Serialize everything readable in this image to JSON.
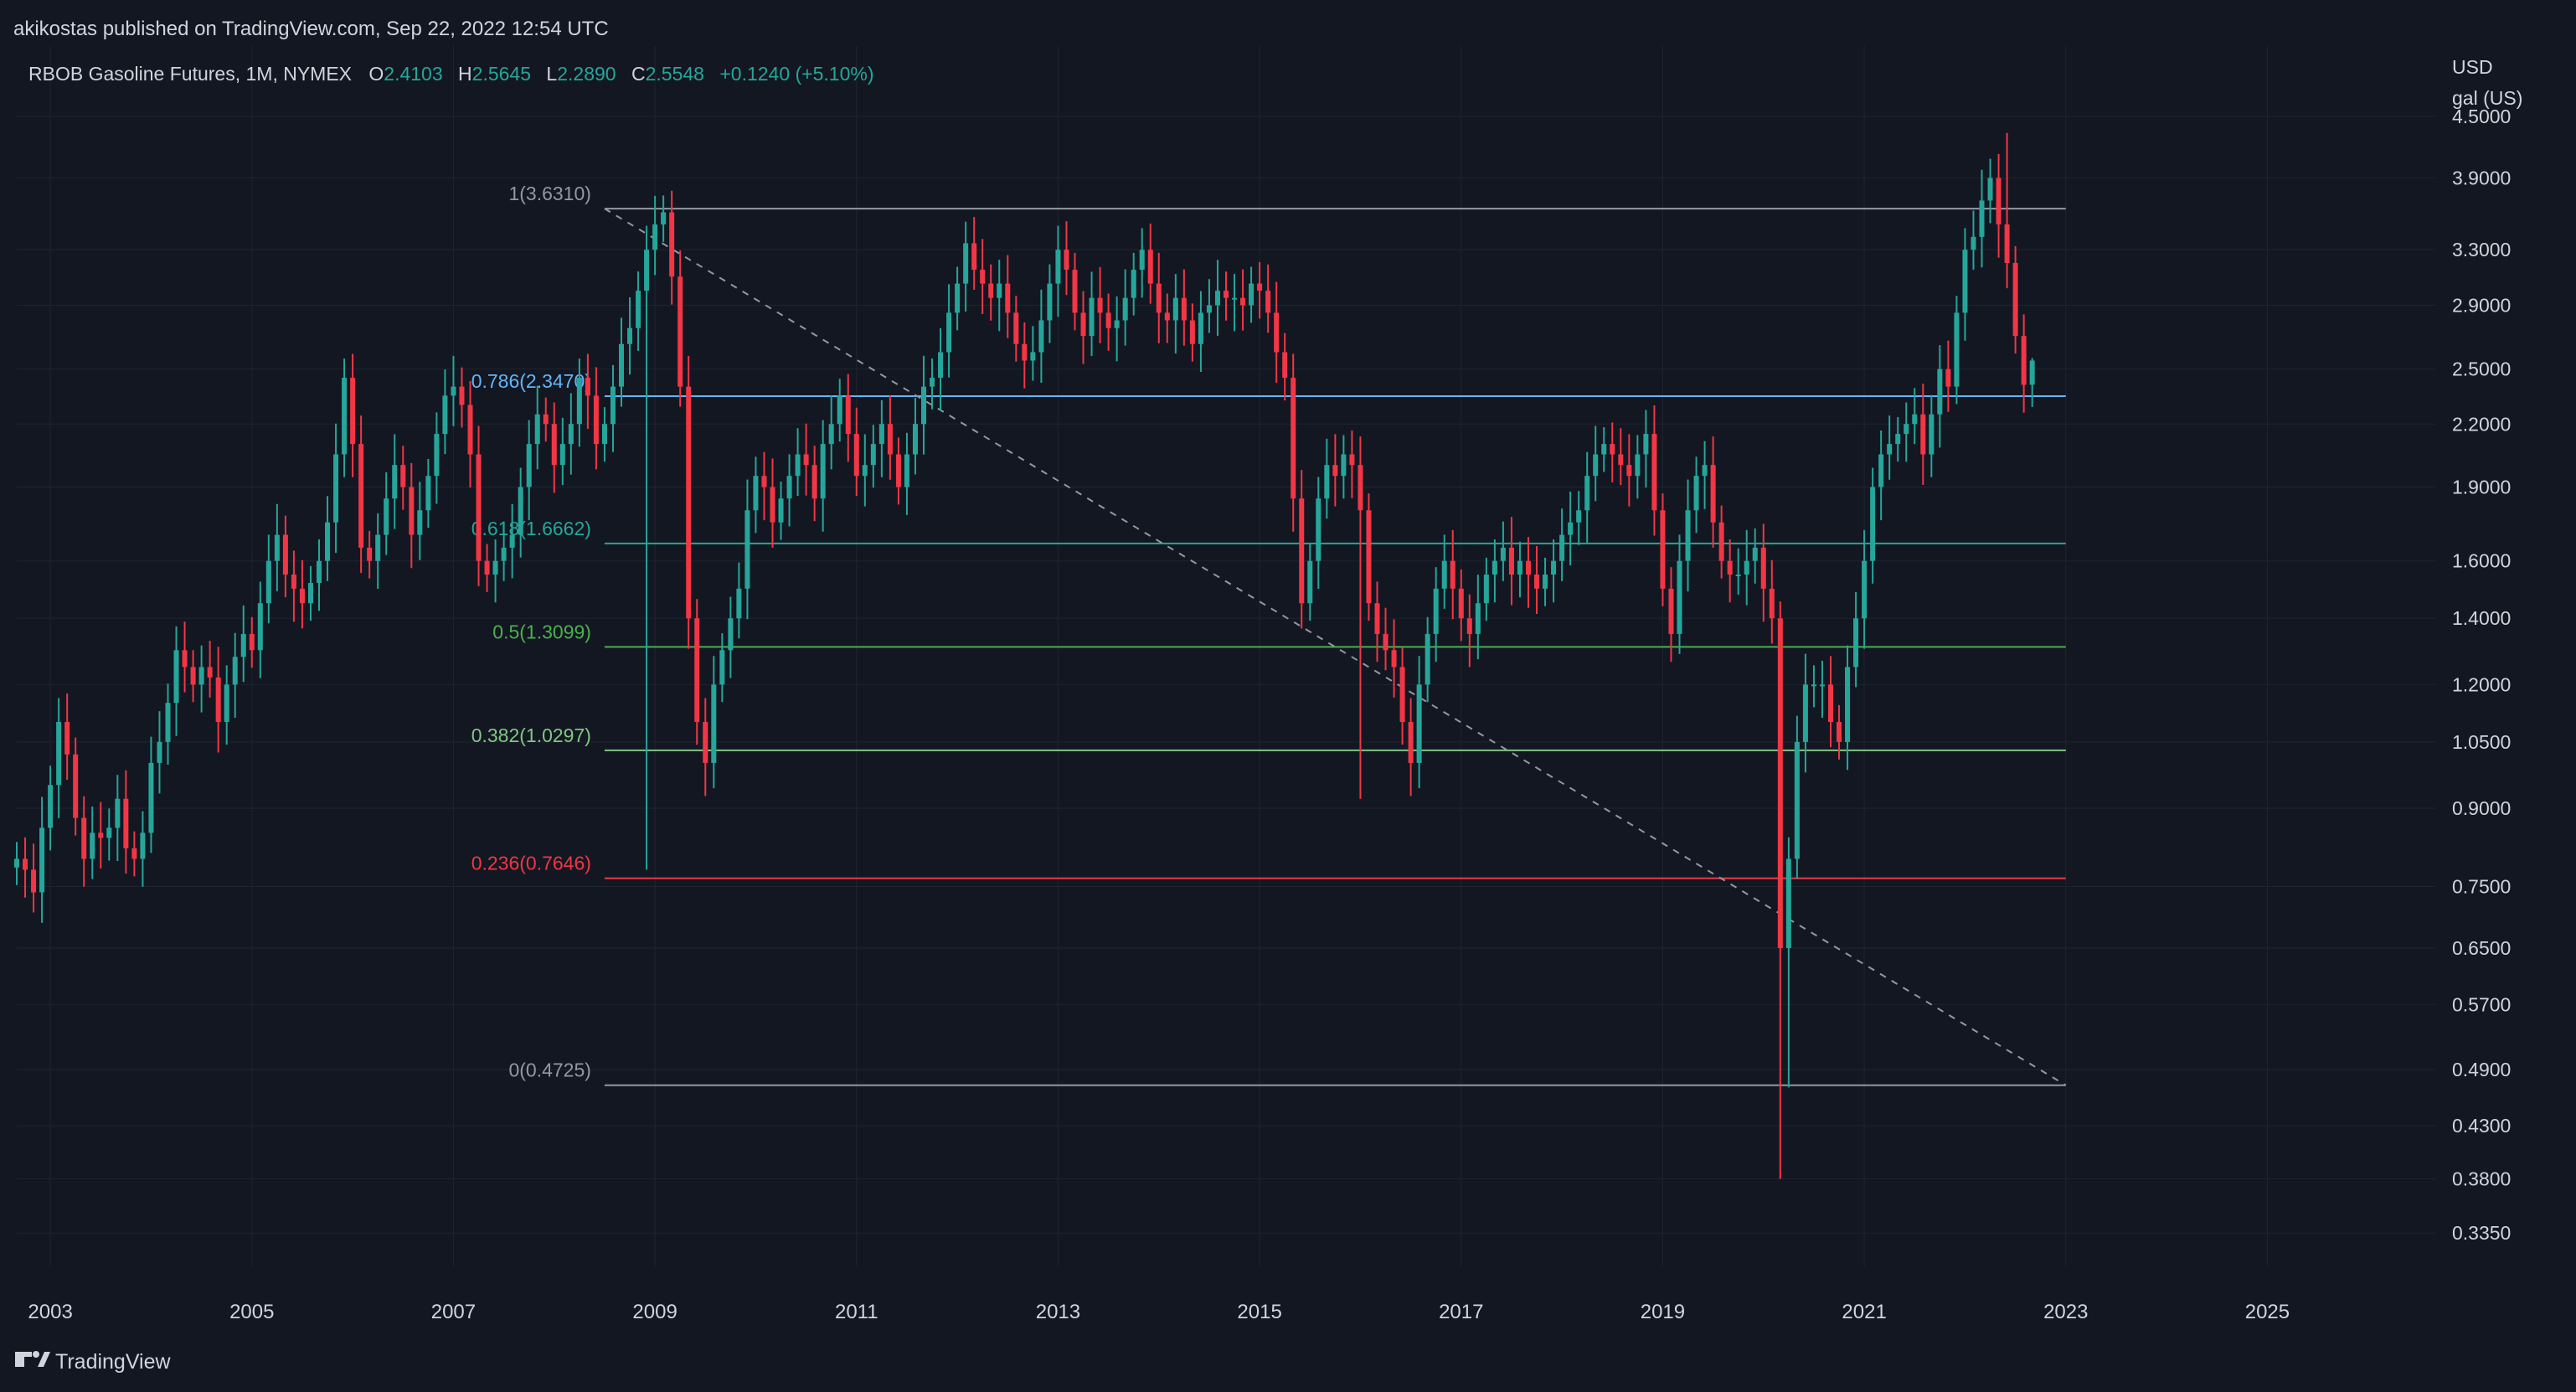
{
  "header": {
    "published_line": "akikostas published on TradingView.com, Sep 22, 2022 12:54 UTC"
  },
  "legend": {
    "symbol_text": "RBOB Gasoline Futures, 1M, NYMEX",
    "o_label": "O",
    "o_value": "2.4103",
    "h_label": "H",
    "h_value": "2.5645",
    "l_label": "L",
    "l_value": "2.2890",
    "c_label": "C",
    "c_value": "2.5548",
    "change": "+0.1240 (+5.10%)"
  },
  "price_axis": {
    "currency": "USD",
    "unit": "gal (US)",
    "ticks": [
      "4.5000",
      "3.9000",
      "3.3000",
      "2.9000",
      "2.5000",
      "2.2000",
      "1.9000",
      "1.6000",
      "1.4000",
      "1.2000",
      "1.0500",
      "0.9000",
      "0.7500",
      "0.6500",
      "0.5700",
      "0.4900",
      "0.4300",
      "0.3800",
      "0.3350"
    ]
  },
  "time_axis": {
    "ticks": [
      "2003",
      "2005",
      "2007",
      "2009",
      "2011",
      "2013",
      "2015",
      "2017",
      "2019",
      "2021",
      "2023",
      "2025"
    ]
  },
  "footer": {
    "brand": "TradingView"
  },
  "colors": {
    "background": "#131722",
    "grid": "#1f2431",
    "up": "#26a69a",
    "down": "#f23645",
    "text": "#b2b5be",
    "fib_1": "#9598a1",
    "fib_0786": "#64b5f6",
    "fib_0618": "#26a69a",
    "fib_05": "#4caf50",
    "fib_0382": "#81c784",
    "fib_0236": "#f23645",
    "fib_0": "#9598a1"
  },
  "chart_data": {
    "type": "candlestick",
    "title": "RBOB Gasoline Futures, 1M, NYMEX",
    "ylabel": "USD gal (US)",
    "y_scale": "log",
    "ylim": [
      0.31,
      5.3
    ],
    "xlim": [
      "2002-09",
      "2026-09"
    ],
    "fib_retracement": {
      "start": {
        "date": "2008-07",
        "price": 3.631
      },
      "end": {
        "date": "2023-01",
        "price": 0.4725
      },
      "levels": [
        {
          "label": "1(3.6310)",
          "ratio": 1,
          "price": 3.631,
          "color_key": "fib_1"
        },
        {
          "label": "0.786(2.3470)",
          "ratio": 0.786,
          "price": 2.347,
          "color_key": "fib_0786"
        },
        {
          "label": "0.618(1.6662)",
          "ratio": 0.618,
          "price": 1.6662,
          "color_key": "fib_0618"
        },
        {
          "label": "0.5(1.3099)",
          "ratio": 0.5,
          "price": 1.3099,
          "color_key": "fib_05"
        },
        {
          "label": "0.382(1.0297)",
          "ratio": 0.382,
          "price": 1.0297,
          "color_key": "fib_0382"
        },
        {
          "label": "0.236(0.7646)",
          "ratio": 0.236,
          "price": 0.7646,
          "color_key": "fib_0236"
        },
        {
          "label": "0(0.4725)",
          "ratio": 0,
          "price": 0.4725,
          "color_key": "fib_0"
        }
      ]
    },
    "monthly_closes": {
      "start": "2002-09",
      "closes": [
        0.8,
        0.78,
        0.74,
        0.86,
        0.95,
        1.1,
        1.02,
        0.88,
        0.8,
        0.85,
        0.84,
        0.86,
        0.92,
        0.82,
        0.8,
        0.85,
        1.0,
        1.05,
        1.15,
        1.3,
        1.25,
        1.2,
        1.25,
        1.22,
        1.1,
        1.2,
        1.28,
        1.35,
        1.3,
        1.45,
        1.6,
        1.7,
        1.55,
        1.5,
        1.45,
        1.52,
        1.6,
        1.75,
        2.05,
        2.45,
        2.1,
        1.65,
        1.6,
        1.7,
        1.85,
        2.0,
        1.9,
        1.7,
        1.8,
        1.95,
        2.15,
        2.35,
        2.4,
        2.3,
        2.05,
        1.6,
        1.55,
        1.6,
        1.65,
        1.7,
        1.9,
        2.1,
        2.25,
        2.2,
        2.0,
        2.1,
        2.2,
        2.45,
        2.35,
        2.1,
        2.2,
        2.4,
        2.65,
        2.75,
        3.0,
        3.3,
        3.5,
        3.6,
        3.1,
        2.4,
        1.4,
        1.1,
        1.0,
        1.2,
        1.3,
        1.4,
        1.5,
        1.8,
        1.95,
        1.9,
        1.75,
        1.85,
        1.95,
        2.05,
        2.0,
        1.85,
        2.1,
        2.2,
        2.35,
        2.15,
        1.95,
        2.0,
        2.1,
        2.2,
        2.05,
        1.9,
        2.05,
        2.2,
        2.4,
        2.45,
        2.6,
        2.85,
        3.05,
        3.35,
        3.15,
        3.05,
        2.95,
        3.05,
        2.85,
        2.65,
        2.55,
        2.6,
        2.8,
        3.05,
        3.3,
        3.15,
        2.85,
        2.7,
        2.95,
        2.85,
        2.75,
        2.8,
        2.95,
        3.15,
        3.3,
        3.05,
        2.85,
        2.8,
        2.95,
        2.8,
        2.65,
        2.85,
        2.9,
        3.0,
        2.95,
        2.95,
        2.9,
        3.05,
        3.0,
        2.85,
        2.6,
        2.45,
        1.85,
        1.45,
        1.6,
        1.85,
        2.0,
        1.95,
        2.05,
        2.0,
        1.8,
        1.45,
        1.35,
        1.3,
        1.25,
        1.1,
        1.0,
        1.2,
        1.35,
        1.5,
        1.6,
        1.5,
        1.4,
        1.35,
        1.45,
        1.55,
        1.6,
        1.65,
        1.55,
        1.6,
        1.55,
        1.5,
        1.55,
        1.6,
        1.7,
        1.75,
        1.8,
        1.95,
        2.05,
        2.1,
        2.05,
        2.0,
        1.95,
        2.05,
        2.15,
        1.8,
        1.5,
        1.35,
        1.6,
        1.8,
        1.95,
        2.0,
        1.75,
        1.6,
        1.55,
        1.55,
        1.6,
        1.65,
        1.5,
        1.4,
        0.65,
        0.8,
        1.05,
        1.2,
        1.2,
        1.2,
        1.1,
        1.05,
        1.25,
        1.4,
        1.6,
        1.9,
        2.05,
        2.1,
        2.15,
        2.2,
        2.25,
        2.05,
        2.25,
        2.5,
        2.4,
        2.85,
        3.3,
        3.4,
        3.7,
        3.9,
        3.5,
        3.2,
        2.7,
        2.41,
        2.55
      ]
    }
  }
}
